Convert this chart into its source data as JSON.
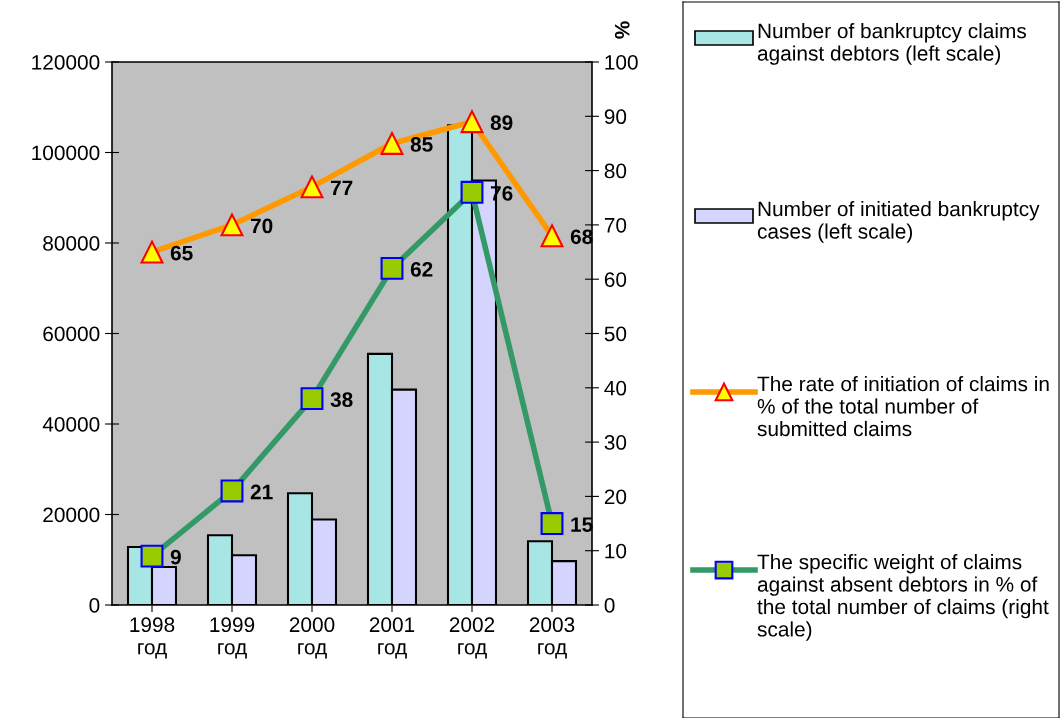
{
  "chart_data": {
    "type": "bar",
    "categories": [
      "1998\nгод",
      "1999\nгод",
      "2000\nгод",
      "2001\nгод",
      "2002\nгод",
      "2003\nгод"
    ],
    "series": [
      {
        "name": "Number of bankruptcy claims against debtors (left scale)",
        "color": "#a8e6e6",
        "values": [
          12800,
          15400,
          24700,
          55500,
          106000,
          14100
        ]
      },
      {
        "name": "Number of initiated bankruptcy cases (left scale)",
        "color": "#d4d4ff",
        "values": [
          8400,
          11000,
          18900,
          47600,
          93800,
          9700
        ]
      },
      {
        "name": "The rate of initiation of claims in % of the total number of submitted claims",
        "type": "line",
        "axis": "y2",
        "color": "#ff9900",
        "marker": "triangle",
        "values": [
          65,
          70,
          77,
          85,
          89,
          68
        ],
        "value_labels": [
          "65",
          "70",
          "77",
          "85",
          "89",
          "68"
        ]
      },
      {
        "name": "The specific weight of claims against absent debtors in % of the total number of claims (right scale)",
        "type": "line",
        "axis": "y2",
        "color": "#339966",
        "marker": "square",
        "values": [
          9,
          21,
          38,
          62,
          76,
          15
        ],
        "value_labels": [
          "9",
          "21",
          "38",
          "62",
          "76",
          "15"
        ]
      }
    ],
    "y2label": "%",
    "ylim": [
      0,
      120000
    ],
    "yticks": [
      0,
      20000,
      40000,
      60000,
      80000,
      100000,
      120000
    ],
    "y2lim": [
      0,
      100
    ],
    "y2ticks": [
      0,
      10,
      20,
      30,
      40,
      50,
      60,
      70,
      80,
      90,
      100
    ],
    "legend": "right",
    "grid": false
  }
}
